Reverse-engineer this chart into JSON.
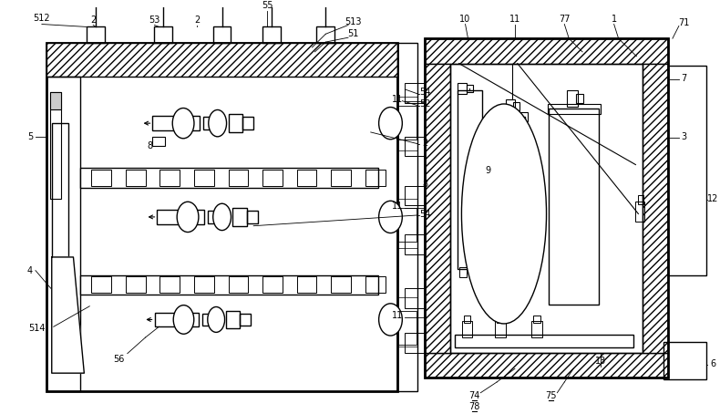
{
  "bg_color": "#ffffff",
  "line_color": "#000000",
  "figsize": [
    7.9,
    4.54
  ],
  "dpi": 100
}
